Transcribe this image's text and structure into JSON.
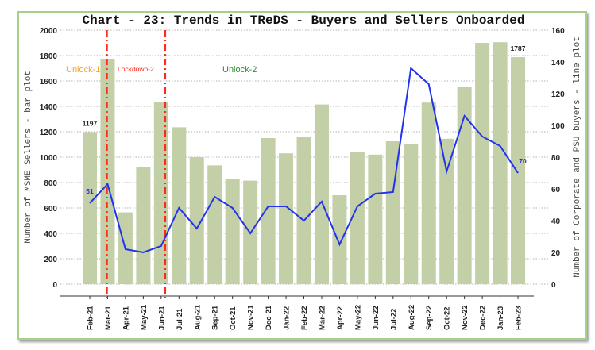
{
  "chart_data": {
    "type": "bar+line",
    "title": "Chart - 23: Trends in TReDS - Buyers and Sellers Onboarded",
    "ylabel": "Number of MSME Sellers - bar plot",
    "y2label": "Number of Corporate and PSU buyers - line plot",
    "ylim": [
      0,
      2000
    ],
    "y2lim": [
      0,
      160
    ],
    "yticks": [
      0,
      200,
      400,
      600,
      800,
      1000,
      1200,
      1400,
      1600,
      1800,
      2000
    ],
    "y2ticks": [
      0,
      20,
      40,
      60,
      80,
      100,
      120,
      140,
      160
    ],
    "grid": true,
    "categories": [
      "Feb-21",
      "Mar-21",
      "Apr-21",
      "May-21",
      "Jun-21",
      "Jul-21",
      "Aug-21",
      "Sep-21",
      "Oct-21",
      "Nov-21",
      "Dec-21",
      "Jan-22",
      "Feb-22",
      "Mar-22",
      "Apr-22",
      "May-22",
      "Jun-22",
      "Jul-22",
      "Aug-22",
      "Sep-22",
      "Oct-22",
      "Nov-22",
      "Dec-22",
      "Jan-23",
      "Feb-23"
    ],
    "series": [
      {
        "name": "MSME Sellers",
        "type": "bar",
        "axis": "left",
        "color": "#c3cfa6",
        "values": [
          1197,
          1775,
          565,
          920,
          1435,
          1235,
          1000,
          935,
          825,
          815,
          1150,
          1030,
          1160,
          1415,
          700,
          1040,
          1020,
          1125,
          1100,
          1430,
          1145,
          1550,
          1900,
          1905,
          1787
        ]
      },
      {
        "name": "Corporate and PSU buyers",
        "type": "line",
        "axis": "right",
        "color": "#2233ee",
        "values": [
          51,
          63,
          22,
          20,
          24,
          48,
          35,
          55,
          48,
          32,
          49,
          49,
          40,
          52,
          25,
          49,
          57,
          58,
          136,
          126,
          71,
          106,
          93,
          87,
          70
        ]
      }
    ],
    "data_labels": [
      {
        "series": 0,
        "index": 0,
        "text": "1197"
      },
      {
        "series": 0,
        "index": 24,
        "text": "1787"
      },
      {
        "series": 1,
        "index": 0,
        "text": "51"
      },
      {
        "series": 1,
        "index": 24,
        "text": "70"
      }
    ],
    "vlines": [
      {
        "category": "Mar-21",
        "color": "#ff2a1a"
      },
      {
        "category": "Jun-21",
        "color": "#ff2a1a"
      }
    ],
    "annotations": [
      {
        "text": "Unlock-1",
        "color": "#f5a623"
      },
      {
        "text": "Lockdown-2",
        "color": "#ff2a1a"
      },
      {
        "text": "Unlock-2",
        "color": "#2e8b2e"
      }
    ]
  }
}
